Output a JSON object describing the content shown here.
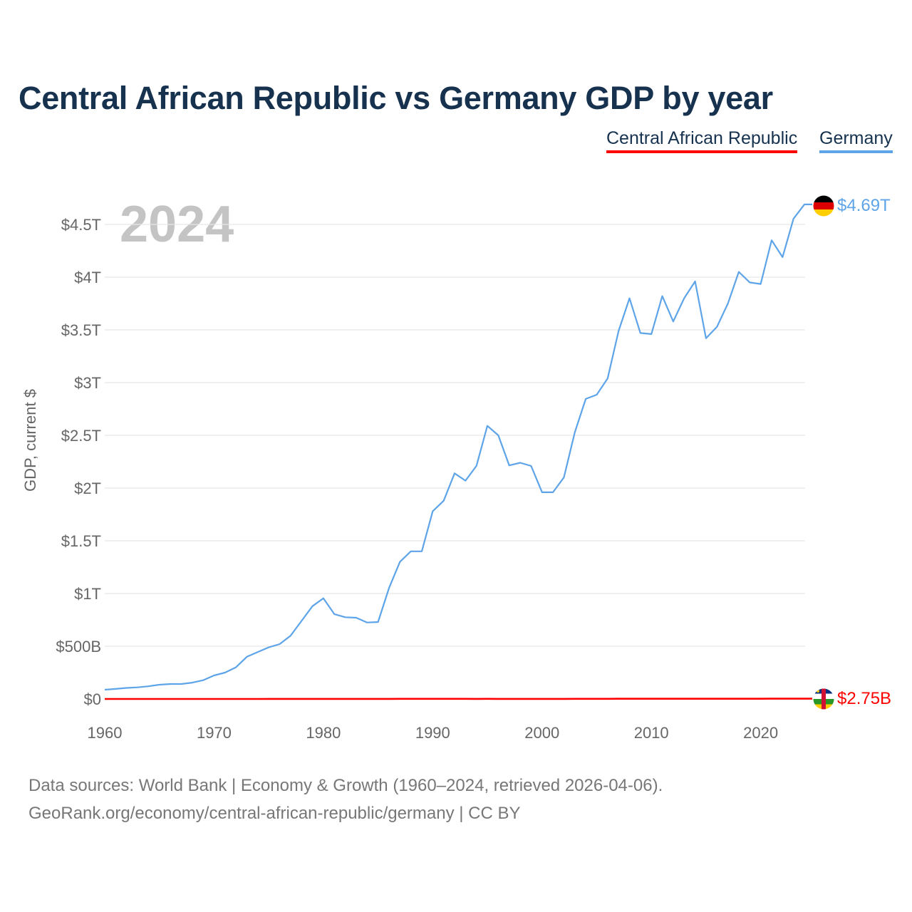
{
  "title": "Central African Republic vs Germany GDP by year",
  "footer": {
    "line1": "Data sources: World Bank | Economy & Growth (1960–2024, retrieved 2026-04-06).",
    "line2": "GeoRank.org/economy/central-african-republic/germany | CC BY"
  },
  "chart_data": {
    "type": "line",
    "title": "Central African Republic vs Germany GDP by year",
    "xlabel": "",
    "ylabel": "GDP, current $",
    "year_watermark": "2024",
    "xlim": [
      1960,
      2024
    ],
    "ylim_trillions": [
      0,
      4.5
    ],
    "x_ticks": [
      1960,
      1970,
      1980,
      1990,
      2000,
      2010,
      2020
    ],
    "y_ticks": [
      {
        "value": 0,
        "label": "$0"
      },
      {
        "value": 0.5,
        "label": "$500B"
      },
      {
        "value": 1,
        "label": "$1T"
      },
      {
        "value": 1.5,
        "label": "$1.5T"
      },
      {
        "value": 2,
        "label": "$2T"
      },
      {
        "value": 2.5,
        "label": "$2.5T"
      },
      {
        "value": 3,
        "label": "$3T"
      },
      {
        "value": 3.5,
        "label": "$3.5T"
      },
      {
        "value": 4,
        "label": "$4T"
      },
      {
        "value": 4.5,
        "label": "$4.5T"
      }
    ],
    "grid": true,
    "legend_position": "top-right",
    "units": "trillions of current US$",
    "series": [
      {
        "name": "Central African Republic",
        "color": "#ff0000",
        "end_label": "$2.75B",
        "flag": "central-african-republic",
        "start_year": 1960,
        "values": [
          0.00011,
          0.00012,
          0.00013,
          0.00014,
          0.00014,
          0.00015,
          0.00016,
          0.00017,
          0.00018,
          0.00018,
          0.00019,
          0.0002,
          0.00022,
          0.00027,
          0.0003,
          0.00037,
          0.00045,
          0.00053,
          0.00058,
          0.0007,
          0.0008,
          0.0007,
          0.00069,
          0.00064,
          0.0006,
          0.00087,
          0.001,
          0.0011,
          0.0012,
          0.0012,
          0.00149,
          0.00141,
          0.00149,
          0.00128,
          0.00088,
          0.00112,
          0.00099,
          0.00094,
          0.00101,
          0.001,
          0.00091,
          0.00093,
          0.00098,
          0.00114,
          0.00127,
          0.00135,
          0.00147,
          0.0017,
          0.00193,
          0.00196,
          0.00199,
          0.00223,
          0.00218,
          0.00169,
          0.0018,
          0.0017,
          0.00181,
          0.00207,
          0.00222,
          0.00222,
          0.00233,
          0.00252,
          0.00238,
          0.00255,
          0.00275
        ]
      },
      {
        "name": "Germany",
        "color": "#5ea4e8",
        "end_label": "$4.69T",
        "flag": "germany",
        "start_year": 1960,
        "values": [
          0.088,
          0.095,
          0.105,
          0.11,
          0.12,
          0.135,
          0.142,
          0.142,
          0.155,
          0.178,
          0.223,
          0.25,
          0.3,
          0.4,
          0.445,
          0.49,
          0.52,
          0.6,
          0.74,
          0.88,
          0.955,
          0.805,
          0.775,
          0.77,
          0.725,
          0.73,
          1.05,
          1.3,
          1.4,
          1.4,
          1.78,
          1.88,
          2.14,
          2.07,
          2.21,
          2.59,
          2.5,
          2.215,
          2.24,
          2.21,
          1.96,
          1.96,
          2.1,
          2.53,
          2.845,
          2.885,
          3.04,
          3.49,
          3.8,
          3.47,
          3.46,
          3.82,
          3.58,
          3.8,
          3.96,
          3.42,
          3.53,
          3.75,
          4.05,
          3.95,
          3.935,
          4.35,
          4.19,
          4.555,
          4.69
        ]
      }
    ]
  }
}
